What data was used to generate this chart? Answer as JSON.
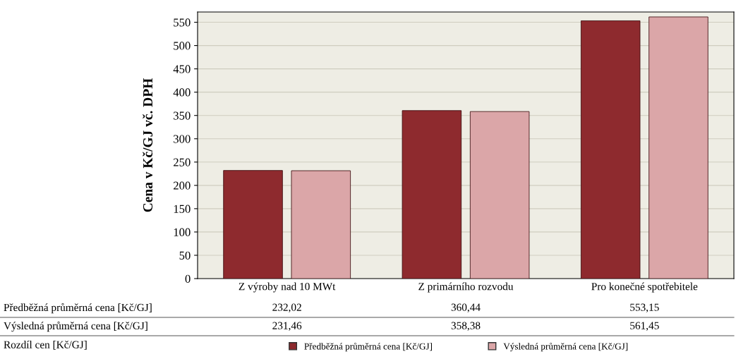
{
  "chart_data": {
    "type": "bar",
    "ylabel": "Cena v Kč/GJ vč. DPH",
    "categories": [
      "Z výroby nad 10 MWt",
      "Z primárního rozvodu",
      "Pro konečné spotřebitele"
    ],
    "series": [
      {
        "name": "Předběžná průměrná cena [Kč/GJ]",
        "color": "#8e2a2e",
        "values": [
          232.02,
          360.44,
          553.15
        ],
        "value_labels": [
          "232,02",
          "360,44",
          "553,15"
        ]
      },
      {
        "name": "Výsledná průměrná cena [Kč/GJ]",
        "color": "#dba6a8",
        "values": [
          231.46,
          358.38,
          561.45
        ],
        "value_labels": [
          "231,46",
          "358,38",
          "561,45"
        ]
      }
    ],
    "ylim": [
      0,
      572
    ],
    "yticks": [
      0,
      50,
      100,
      150,
      200,
      250,
      300,
      350,
      400,
      450,
      500,
      550
    ],
    "grid": "y",
    "legend": "bottom",
    "annotations": [
      "Rozdíl cen [Kč/GJ]"
    ]
  }
}
